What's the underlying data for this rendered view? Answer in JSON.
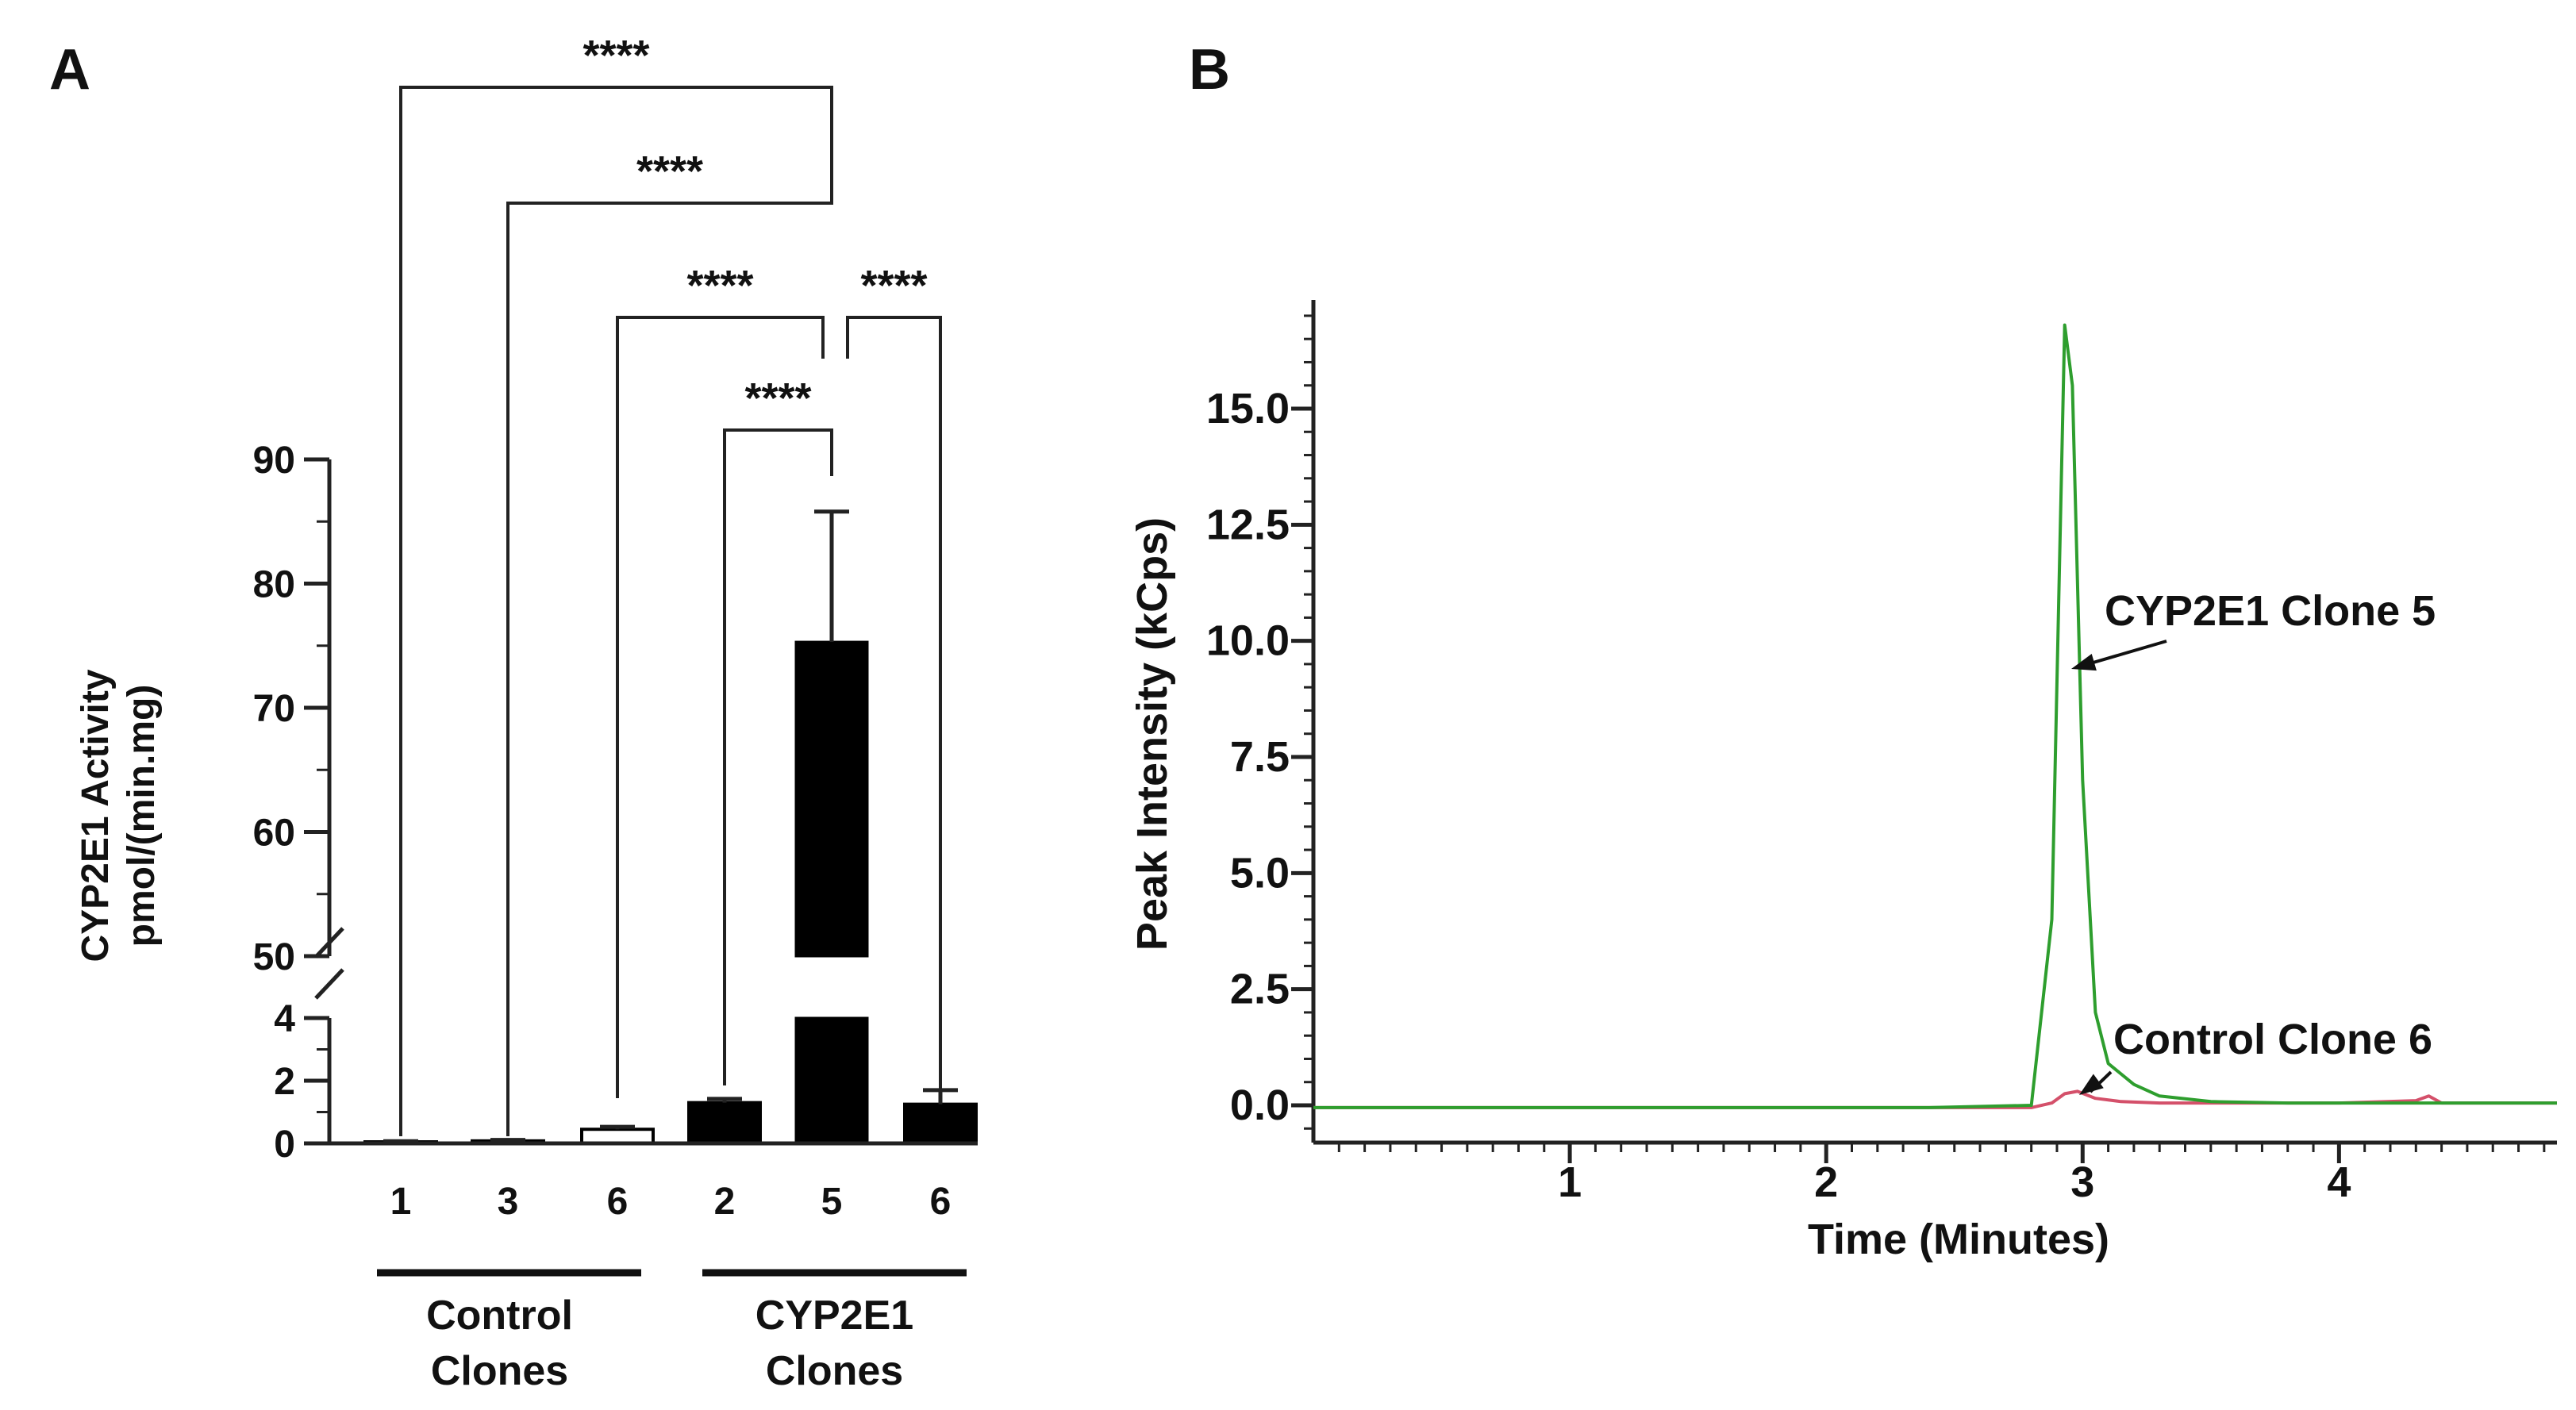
{
  "chart_data": [
    {
      "panel": "A",
      "type": "bar",
      "ylabel": [
        "CYP2E1 Activity",
        "pmol/(min.mg)"
      ],
      "y_axis_break": [
        4,
        50
      ],
      "yticks_lower": [
        0,
        2,
        4
      ],
      "yticks_upper": [
        50,
        60,
        70,
        80,
        90
      ],
      "categories": [
        "1",
        "3",
        "6",
        "2",
        "5",
        "6"
      ],
      "bars": [
        {
          "label": "1",
          "group": "Control",
          "value": 0.05,
          "error": 0.02,
          "fill": "#ffffff"
        },
        {
          "label": "3",
          "group": "Control",
          "value": 0.08,
          "error": 0.03,
          "fill": "#ffffff"
        },
        {
          "label": "6",
          "group": "Control",
          "value": 0.45,
          "error": 0.08,
          "fill": "#ffffff"
        },
        {
          "label": "2",
          "group": "CYP2E1",
          "value": 1.3,
          "error": 0.12,
          "fill": "#000000"
        },
        {
          "label": "5",
          "group": "CYP2E1",
          "value": 75.3,
          "error": 10.5,
          "fill": "#000000"
        },
        {
          "label": "6",
          "group": "CYP2E1",
          "value": 1.25,
          "error": 0.45,
          "fill": "#000000"
        }
      ],
      "groups": [
        {
          "name": "Control Clones",
          "lines": [
            "Control",
            "Clones"
          ],
          "members": [
            0,
            1,
            2
          ]
        },
        {
          "name": "CYP2E1 Clones",
          "lines": [
            "CYP2E1",
            "Clones"
          ],
          "members": [
            3,
            4,
            5
          ]
        }
      ],
      "comparisons": [
        {
          "a": 0,
          "b": 4,
          "label": "****"
        },
        {
          "a": 1,
          "b": 4,
          "label": "****"
        },
        {
          "a": 2,
          "b": 4,
          "label": "****"
        },
        {
          "a": 4,
          "b": 5,
          "label": "****"
        },
        {
          "a": 3,
          "b": 4,
          "label": "****"
        }
      ]
    },
    {
      "panel": "B",
      "type": "line",
      "xlabel": "Time (Minutes)",
      "ylabel": "Peak Intensity (kCps)",
      "xlim": [
        0,
        4.85
      ],
      "ylim": [
        -0.5,
        17.5
      ],
      "xticks": [
        1,
        2,
        3,
        4
      ],
      "yticks": [
        0.0,
        2.5,
        5.0,
        7.5,
        10.0,
        12.5,
        15.0
      ],
      "series": [
        {
          "name": "CYP2E1 Clone 5",
          "color": "#2e9e2e",
          "x": [
            0,
            2.4,
            2.8,
            2.88,
            2.93,
            2.96,
            3.0,
            3.05,
            3.1,
            3.2,
            3.3,
            3.5,
            3.8,
            4.2,
            4.5,
            4.85
          ],
          "y": [
            -0.05,
            -0.05,
            0.0,
            4.0,
            16.8,
            15.5,
            7.0,
            2.0,
            0.9,
            0.45,
            0.2,
            0.08,
            0.05,
            0.05,
            0.05,
            0.05
          ]
        },
        {
          "name": "Control Clone 6",
          "color": "#d4506a",
          "x": [
            0,
            2.8,
            2.88,
            2.93,
            2.98,
            3.05,
            3.15,
            3.3,
            3.6,
            4.0,
            4.3,
            4.35,
            4.4,
            4.85
          ],
          "y": [
            -0.05,
            -0.05,
            0.05,
            0.25,
            0.3,
            0.15,
            0.08,
            0.05,
            0.05,
            0.05,
            0.1,
            0.2,
            0.05,
            0.05
          ]
        }
      ],
      "annotations": [
        {
          "text": "CYP2E1 Clone 5",
          "points_to": [
            2.95,
            10.8
          ]
        },
        {
          "text": "Control Clone 6",
          "points_to": [
            2.98,
            0.4
          ]
        }
      ]
    }
  ],
  "panels": {
    "a_label": "A",
    "b_label": "B"
  }
}
